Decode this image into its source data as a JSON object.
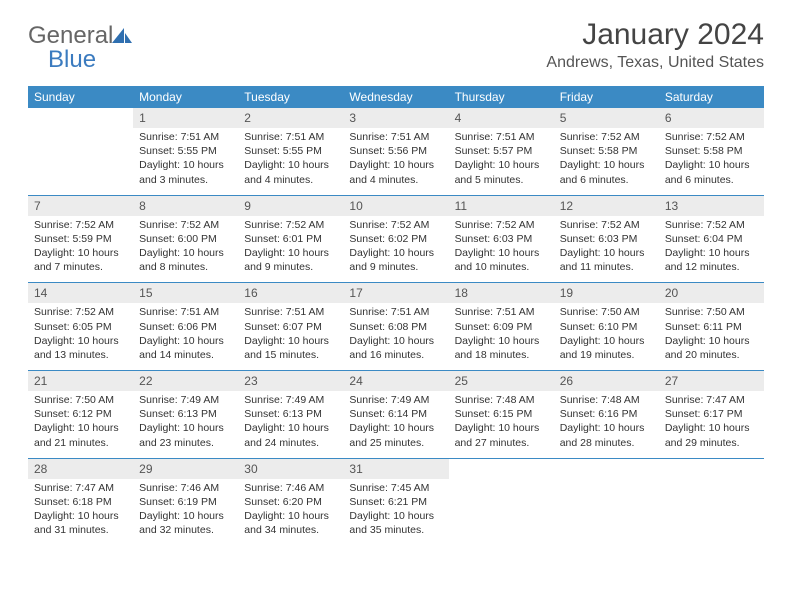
{
  "brand": {
    "name1": "General",
    "name2": "Blue"
  },
  "title": "January 2024",
  "location": "Andrews, Texas, United States",
  "colors": {
    "header_bg": "#3b8ac4",
    "header_fg": "#ffffff",
    "daynum_bg": "#ececec",
    "rule": "#3b8ac4",
    "logo_gray": "#666666",
    "logo_blue": "#3b7bbf",
    "text": "#333333"
  },
  "weekdays": [
    "Sunday",
    "Monday",
    "Tuesday",
    "Wednesday",
    "Thursday",
    "Friday",
    "Saturday"
  ],
  "weeks": [
    [
      null,
      {
        "n": "1",
        "sr": "Sunrise: 7:51 AM",
        "ss": "Sunset: 5:55 PM",
        "d1": "Daylight: 10 hours",
        "d2": "and 3 minutes."
      },
      {
        "n": "2",
        "sr": "Sunrise: 7:51 AM",
        "ss": "Sunset: 5:55 PM",
        "d1": "Daylight: 10 hours",
        "d2": "and 4 minutes."
      },
      {
        "n": "3",
        "sr": "Sunrise: 7:51 AM",
        "ss": "Sunset: 5:56 PM",
        "d1": "Daylight: 10 hours",
        "d2": "and 4 minutes."
      },
      {
        "n": "4",
        "sr": "Sunrise: 7:51 AM",
        "ss": "Sunset: 5:57 PM",
        "d1": "Daylight: 10 hours",
        "d2": "and 5 minutes."
      },
      {
        "n": "5",
        "sr": "Sunrise: 7:52 AM",
        "ss": "Sunset: 5:58 PM",
        "d1": "Daylight: 10 hours",
        "d2": "and 6 minutes."
      },
      {
        "n": "6",
        "sr": "Sunrise: 7:52 AM",
        "ss": "Sunset: 5:58 PM",
        "d1": "Daylight: 10 hours",
        "d2": "and 6 minutes."
      }
    ],
    [
      {
        "n": "7",
        "sr": "Sunrise: 7:52 AM",
        "ss": "Sunset: 5:59 PM",
        "d1": "Daylight: 10 hours",
        "d2": "and 7 minutes."
      },
      {
        "n": "8",
        "sr": "Sunrise: 7:52 AM",
        "ss": "Sunset: 6:00 PM",
        "d1": "Daylight: 10 hours",
        "d2": "and 8 minutes."
      },
      {
        "n": "9",
        "sr": "Sunrise: 7:52 AM",
        "ss": "Sunset: 6:01 PM",
        "d1": "Daylight: 10 hours",
        "d2": "and 9 minutes."
      },
      {
        "n": "10",
        "sr": "Sunrise: 7:52 AM",
        "ss": "Sunset: 6:02 PM",
        "d1": "Daylight: 10 hours",
        "d2": "and 9 minutes."
      },
      {
        "n": "11",
        "sr": "Sunrise: 7:52 AM",
        "ss": "Sunset: 6:03 PM",
        "d1": "Daylight: 10 hours",
        "d2": "and 10 minutes."
      },
      {
        "n": "12",
        "sr": "Sunrise: 7:52 AM",
        "ss": "Sunset: 6:03 PM",
        "d1": "Daylight: 10 hours",
        "d2": "and 11 minutes."
      },
      {
        "n": "13",
        "sr": "Sunrise: 7:52 AM",
        "ss": "Sunset: 6:04 PM",
        "d1": "Daylight: 10 hours",
        "d2": "and 12 minutes."
      }
    ],
    [
      {
        "n": "14",
        "sr": "Sunrise: 7:52 AM",
        "ss": "Sunset: 6:05 PM",
        "d1": "Daylight: 10 hours",
        "d2": "and 13 minutes."
      },
      {
        "n": "15",
        "sr": "Sunrise: 7:51 AM",
        "ss": "Sunset: 6:06 PM",
        "d1": "Daylight: 10 hours",
        "d2": "and 14 minutes."
      },
      {
        "n": "16",
        "sr": "Sunrise: 7:51 AM",
        "ss": "Sunset: 6:07 PM",
        "d1": "Daylight: 10 hours",
        "d2": "and 15 minutes."
      },
      {
        "n": "17",
        "sr": "Sunrise: 7:51 AM",
        "ss": "Sunset: 6:08 PM",
        "d1": "Daylight: 10 hours",
        "d2": "and 16 minutes."
      },
      {
        "n": "18",
        "sr": "Sunrise: 7:51 AM",
        "ss": "Sunset: 6:09 PM",
        "d1": "Daylight: 10 hours",
        "d2": "and 18 minutes."
      },
      {
        "n": "19",
        "sr": "Sunrise: 7:50 AM",
        "ss": "Sunset: 6:10 PM",
        "d1": "Daylight: 10 hours",
        "d2": "and 19 minutes."
      },
      {
        "n": "20",
        "sr": "Sunrise: 7:50 AM",
        "ss": "Sunset: 6:11 PM",
        "d1": "Daylight: 10 hours",
        "d2": "and 20 minutes."
      }
    ],
    [
      {
        "n": "21",
        "sr": "Sunrise: 7:50 AM",
        "ss": "Sunset: 6:12 PM",
        "d1": "Daylight: 10 hours",
        "d2": "and 21 minutes."
      },
      {
        "n": "22",
        "sr": "Sunrise: 7:49 AM",
        "ss": "Sunset: 6:13 PM",
        "d1": "Daylight: 10 hours",
        "d2": "and 23 minutes."
      },
      {
        "n": "23",
        "sr": "Sunrise: 7:49 AM",
        "ss": "Sunset: 6:13 PM",
        "d1": "Daylight: 10 hours",
        "d2": "and 24 minutes."
      },
      {
        "n": "24",
        "sr": "Sunrise: 7:49 AM",
        "ss": "Sunset: 6:14 PM",
        "d1": "Daylight: 10 hours",
        "d2": "and 25 minutes."
      },
      {
        "n": "25",
        "sr": "Sunrise: 7:48 AM",
        "ss": "Sunset: 6:15 PM",
        "d1": "Daylight: 10 hours",
        "d2": "and 27 minutes."
      },
      {
        "n": "26",
        "sr": "Sunrise: 7:48 AM",
        "ss": "Sunset: 6:16 PM",
        "d1": "Daylight: 10 hours",
        "d2": "and 28 minutes."
      },
      {
        "n": "27",
        "sr": "Sunrise: 7:47 AM",
        "ss": "Sunset: 6:17 PM",
        "d1": "Daylight: 10 hours",
        "d2": "and 29 minutes."
      }
    ],
    [
      {
        "n": "28",
        "sr": "Sunrise: 7:47 AM",
        "ss": "Sunset: 6:18 PM",
        "d1": "Daylight: 10 hours",
        "d2": "and 31 minutes."
      },
      {
        "n": "29",
        "sr": "Sunrise: 7:46 AM",
        "ss": "Sunset: 6:19 PM",
        "d1": "Daylight: 10 hours",
        "d2": "and 32 minutes."
      },
      {
        "n": "30",
        "sr": "Sunrise: 7:46 AM",
        "ss": "Sunset: 6:20 PM",
        "d1": "Daylight: 10 hours",
        "d2": "and 34 minutes."
      },
      {
        "n": "31",
        "sr": "Sunrise: 7:45 AM",
        "ss": "Sunset: 6:21 PM",
        "d1": "Daylight: 10 hours",
        "d2": "and 35 minutes."
      },
      null,
      null,
      null
    ]
  ]
}
